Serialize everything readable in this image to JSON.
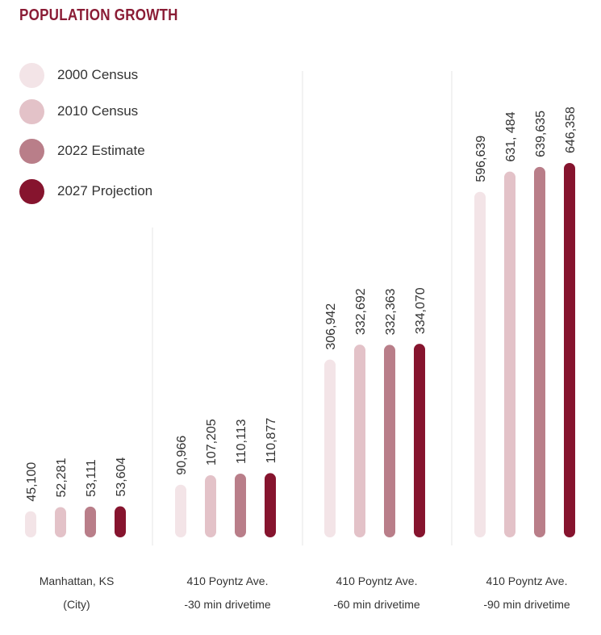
{
  "chart_data": {
    "type": "bar",
    "title": "POPULATION GROWTH",
    "series": [
      {
        "name": "2000 Census",
        "color": "#f3e4e7",
        "values": [
          45100,
          90966,
          306942,
          596639
        ]
      },
      {
        "name": "2010 Census",
        "color": "#e3c2c8",
        "values": [
          52281,
          107205,
          332692,
          631484
        ]
      },
      {
        "name": "2022 Estimate",
        "color": "#b97e89",
        "values": [
          53111,
          110113,
          332363,
          639635
        ]
      },
      {
        "name": "2027 Projection",
        "color": "#86142e",
        "values": [
          53604,
          110877,
          334070,
          646358
        ]
      }
    ],
    "value_labels": [
      [
        "45,100",
        "52,281",
        "53,111",
        "53,604"
      ],
      [
        "90,966",
        "107,205",
        "110,113",
        "110,877"
      ],
      [
        "306,942",
        "332,692",
        "332,363",
        "334,070"
      ],
      [
        "596,639",
        "631, 484",
        "639,635",
        "646,358"
      ]
    ],
    "groups": [
      {
        "line1": "Manhattan, KS",
        "line2": "(City)"
      },
      {
        "line1": "410 Poyntz Ave.",
        "line2": "-30 min drivetime"
      },
      {
        "line1": "410 Poyntz Ave.",
        "line2": "-60 min drivetime"
      },
      {
        "line1": "410 Poyntz Ave.",
        "line2": "-90 min drivetime"
      }
    ],
    "xlabel": "",
    "ylabel": "",
    "grid": false,
    "legend_position": "top-left"
  }
}
